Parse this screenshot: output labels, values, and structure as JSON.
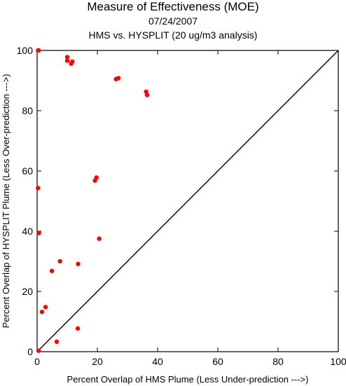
{
  "chart_data": {
    "type": "scatter",
    "title": "Measure of Effectiveness (MOE)",
    "date": "07/24/2007",
    "subtitle": "HMS vs. HYSPLIT  (20 ug/m3 analysis)",
    "xlabel": "Percent Overlap of HMS Plume (Less Under-prediction --->)",
    "ylabel": "Percent Overlap of HYSPLIT Plume (Less Over-prediction --->)",
    "xlim": [
      0,
      100
    ],
    "ylim": [
      0,
      100
    ],
    "xticks": [
      0,
      20,
      40,
      60,
      80,
      100
    ],
    "yticks": [
      0,
      20,
      40,
      60,
      80,
      100
    ],
    "grid": false,
    "diagonal_line": true,
    "marker_color": "#ff0000",
    "points": [
      {
        "x": 0.3,
        "y": 100
      },
      {
        "x": 0.5,
        "y": 100
      },
      {
        "x": 10.0,
        "y": 97.8
      },
      {
        "x": 10.0,
        "y": 96.6
      },
      {
        "x": 11.7,
        "y": 96.3
      },
      {
        "x": 11.3,
        "y": 95.6
      },
      {
        "x": 26.2,
        "y": 90.5
      },
      {
        "x": 27.0,
        "y": 90.8
      },
      {
        "x": 36.2,
        "y": 86.3
      },
      {
        "x": 36.5,
        "y": 85.2
      },
      {
        "x": 19.7,
        "y": 57.8
      },
      {
        "x": 19.2,
        "y": 56.8
      },
      {
        "x": 0.3,
        "y": 54.3
      },
      {
        "x": 0.6,
        "y": 39.4
      },
      {
        "x": 20.6,
        "y": 37.5
      },
      {
        "x": 7.6,
        "y": 30.0
      },
      {
        "x": 13.6,
        "y": 29.1
      },
      {
        "x": 4.9,
        "y": 26.8
      },
      {
        "x": 2.8,
        "y": 14.8
      },
      {
        "x": 1.6,
        "y": 13.2
      },
      {
        "x": 13.5,
        "y": 7.7
      },
      {
        "x": 6.5,
        "y": 3.3
      },
      {
        "x": 0.5,
        "y": 0.3
      }
    ]
  }
}
